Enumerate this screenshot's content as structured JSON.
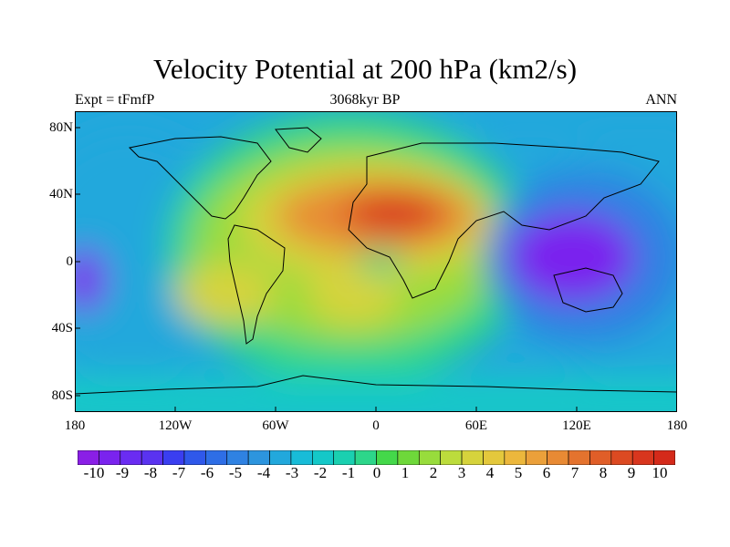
{
  "title": "Velocity Potential at 200 hPa (km2/s)",
  "left_label": "Expt = tFmfP",
  "center_label": "3068kyr BP",
  "right_label": "ANN",
  "lat_ticks": [
    "80N",
    "40N",
    "0",
    "40S",
    "80S"
  ],
  "lon_ticks": [
    "180",
    "120W",
    "60W",
    "0",
    "60E",
    "120E",
    "180"
  ],
  "colorbar": {
    "labels": [
      "-10",
      "-9",
      "-8",
      "-7",
      "-6",
      "-5",
      "-4",
      "-3",
      "-2",
      "-1",
      "0",
      "1",
      "2",
      "3",
      "4",
      "5",
      "6",
      "7",
      "8",
      "9",
      "10"
    ],
    "colors": [
      "#8a1fe6",
      "#7a23ee",
      "#6a2cf2",
      "#5a33f0",
      "#3a3ef0",
      "#2f58ea",
      "#2e6ee6",
      "#2f82e2",
      "#2d95de",
      "#22a8dc",
      "#18bcd8",
      "#14c8c8",
      "#1ad0b0",
      "#2dd68a",
      "#44d84a",
      "#6ed83a",
      "#98dc3c",
      "#bcdc3c",
      "#d6d33c",
      "#e4c83c",
      "#ecb73c",
      "#eba03a",
      "#e88a34",
      "#e4732e",
      "#e05e28",
      "#dc4a22",
      "#d8361e",
      "#d42a1a"
    ]
  },
  "field_colors": {
    "very_low": "#7a23ee",
    "low": "#2f82e2",
    "mid_low": "#22a8dc",
    "neutral": "#14c8c8",
    "mid_high": "#2dd68a",
    "high": "#98dc3c",
    "higher": "#d6d33c",
    "very_high": "#e88a34",
    "max": "#d8361e"
  }
}
